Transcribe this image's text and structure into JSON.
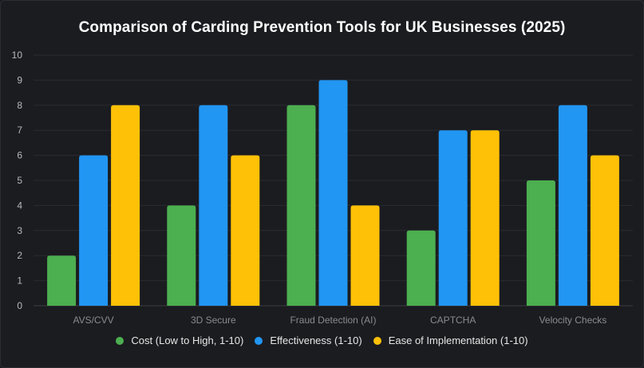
{
  "chart_data": {
    "type": "bar",
    "title": "Comparison of Carding Prevention Tools for UK Businesses (2025)",
    "categories": [
      "AVS/CVV",
      "3D Secure",
      "Fraud Detection (AI)",
      "CAPTCHA",
      "Velocity Checks"
    ],
    "series": [
      {
        "name": "Cost (Low to High, 1-10)",
        "color": "#4caf50",
        "values": [
          2,
          4,
          8,
          3,
          5
        ]
      },
      {
        "name": "Effectiveness (1-10)",
        "color": "#2196f3",
        "values": [
          6,
          8,
          9,
          7,
          8
        ]
      },
      {
        "name": "Ease of Implementation (1-10)",
        "color": "#ffc107",
        "values": [
          8,
          6,
          4,
          7,
          6
        ]
      }
    ],
    "yticks": [
      "0",
      "1",
      "2",
      "3",
      "4",
      "5",
      "6",
      "7",
      "8",
      "9",
      "10"
    ],
    "ylim": [
      0,
      10
    ],
    "xlabel": "",
    "ylabel": "",
    "grid": true,
    "legend_position": "bottom"
  }
}
